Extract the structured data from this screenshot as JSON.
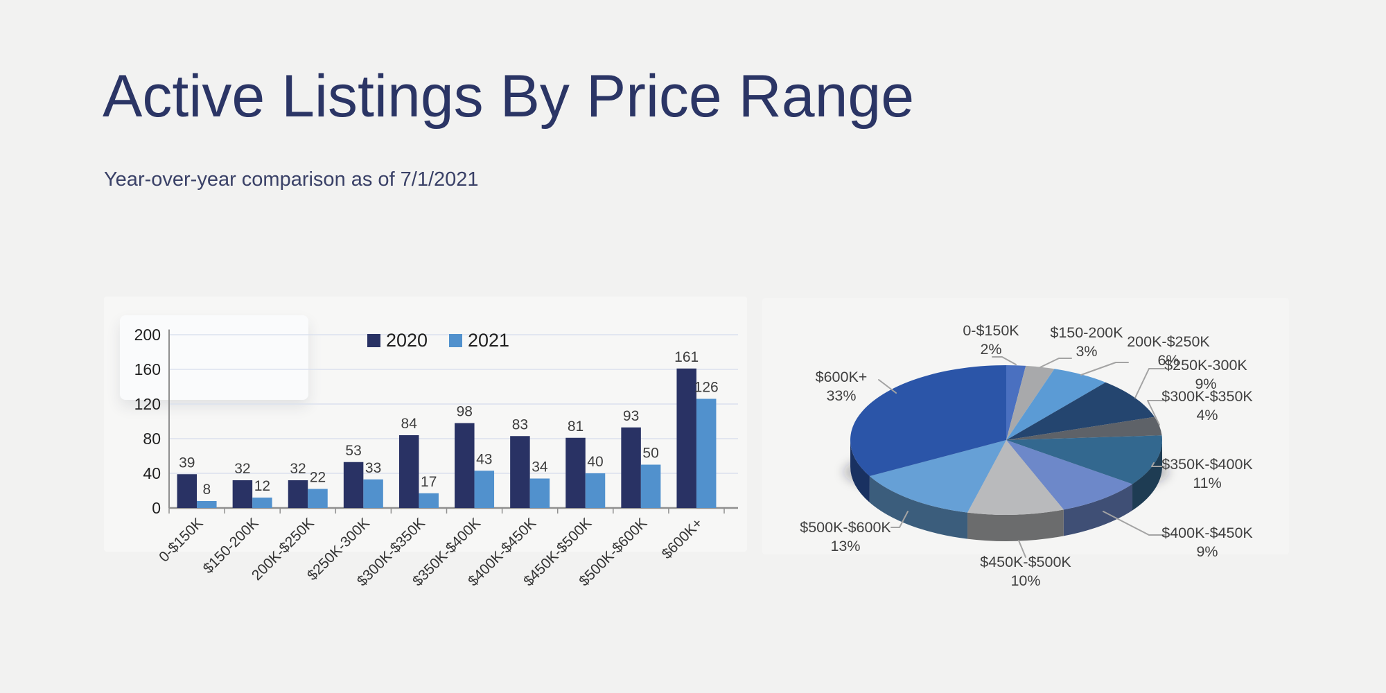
{
  "page": {
    "title": "Active Listings By Price Range",
    "subtitle": "Year-over-year comparison as of 7/1/2021"
  },
  "colors": {
    "background": "#f2f2f1",
    "title_text": "#2b3565",
    "subtitle_text": "#3a4167",
    "bar_2020": "#293264",
    "bar_2021": "#5191cd",
    "gridline": "#dbe1ee",
    "axis_line": "#8f8f8f",
    "tick_label": "#1f1f1f",
    "data_label": "#3d3d3d",
    "pie_label": "#404040",
    "leader_line": "#a3a3a3"
  },
  "chart_data": [
    {
      "type": "bar",
      "title": "",
      "categories": [
        "0-$150K",
        "$150-200K",
        "200K-$250K",
        "$250K-300K",
        "$300K-$350K",
        "$350K-$400K",
        "$400K-$450K",
        "$450K-$500K",
        "$500K-$600K",
        "$600K+"
      ],
      "series": [
        {
          "name": "2020",
          "color": "#293264",
          "values": [
            39,
            32,
            32,
            53,
            84,
            98,
            83,
            81,
            93,
            161
          ]
        },
        {
          "name": "2021",
          "color": "#5191cd",
          "values": [
            8,
            12,
            22,
            33,
            17,
            43,
            34,
            40,
            50,
            126
          ]
        }
      ],
      "ylim": [
        0,
        200
      ],
      "yticks": [
        0,
        40,
        80,
        120,
        160,
        200
      ],
      "grid": true,
      "legend_position": "top-center",
      "data_labels": true
    },
    {
      "type": "pie",
      "style": "3d",
      "start_angle_deg": 0,
      "direction": "clockwise",
      "labels": [
        "0-$150K",
        "$150-200K",
        "200K-$250K",
        "$250K-300K",
        "$300K-$350K",
        "$350K-$400K",
        "$400K-$450K",
        "$450K-$500K",
        "$500K-$600K",
        "$600K+"
      ],
      "values_percent": [
        2,
        3,
        6,
        9,
        4,
        11,
        9,
        10,
        13,
        33
      ],
      "percent_labels": [
        "2%",
        "3%",
        "6%",
        "9%",
        "4%",
        "11%",
        "9%",
        "10%",
        "13%",
        "33%"
      ],
      "colors": [
        "#4a70c0",
        "#a8a9ab",
        "#5b9bd5",
        "#24456f",
        "#5e6268",
        "#33688f",
        "#6d88c9",
        "#b9babc",
        "#66a0d6",
        "#2b55a8"
      ]
    }
  ]
}
